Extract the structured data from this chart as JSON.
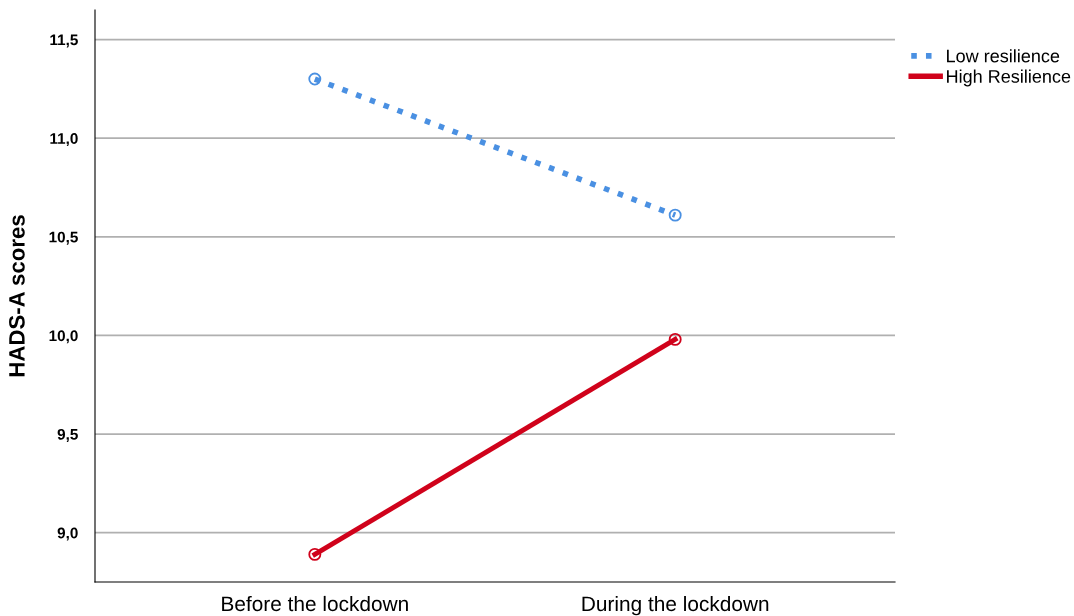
{
  "chart_data": {
    "type": "line",
    "ylabel": "HADS-A scores",
    "categories": [
      "Before the lockdown",
      "During the lockdown"
    ],
    "series": [
      {
        "name": "Low resilience",
        "color": "#4a90e2",
        "values": [
          11.3,
          10.61
        ],
        "line_style": "dotted"
      },
      {
        "name": "High Resilience",
        "color": "#d0021b",
        "values": [
          8.89,
          9.98
        ],
        "line_style": "solid"
      }
    ],
    "ylim": [
      8.75,
      11.65
    ],
    "yticks": [
      {
        "value": 9.0,
        "label": "9,0"
      },
      {
        "value": 9.5,
        "label": "9,5"
      },
      {
        "value": 10.0,
        "label": "10,0"
      },
      {
        "value": 10.5,
        "label": "10,5"
      },
      {
        "value": 11.0,
        "label": "11,0"
      },
      {
        "value": 11.5,
        "label": "11,5"
      }
    ],
    "grid": "y",
    "legend": "top right",
    "marker": "circle"
  }
}
